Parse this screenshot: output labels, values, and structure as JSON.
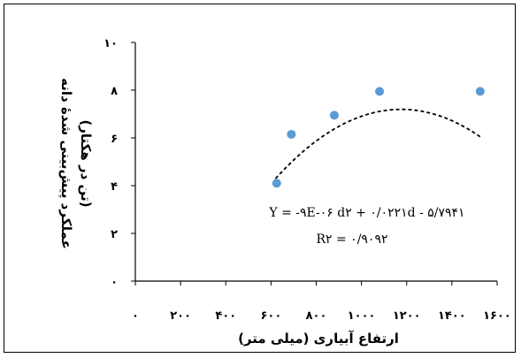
{
  "chart_data": {
    "type": "scatter",
    "title": "",
    "xlabel": "ارتفاع آبیاری (میلی متر)",
    "ylabel_line1": "عملکرد پیش‌بینی شدهٔ دانه",
    "ylabel_line2": "(تن در هکتار)",
    "xlim": [
      0,
      1600
    ],
    "ylim": [
      0,
      10
    ],
    "xticks": [
      0,
      200,
      400,
      600,
      800,
      1000,
      1200,
      1400,
      1600
    ],
    "xtick_labels": [
      "۰",
      "۲۰۰",
      "۴۰۰",
      "۶۰۰",
      "۸۰۰",
      "۱۰۰۰",
      "۱۲۰۰",
      "۱۴۰۰",
      "۱۶۰۰"
    ],
    "yticks": [
      0,
      2,
      4,
      6,
      8,
      10
    ],
    "ytick_labels": [
      "۰",
      "۲",
      "۴",
      "۶",
      "۸",
      "۱۰"
    ],
    "points": [
      {
        "x": 625,
        "y": 4.1
      },
      {
        "x": 690,
        "y": 6.15
      },
      {
        "x": 880,
        "y": 6.95
      },
      {
        "x": 1080,
        "y": 7.95
      },
      {
        "x": 1525,
        "y": 7.95
      }
    ],
    "trendline": {
      "a": -9.4e-06,
      "b": 0.0221,
      "c": -5.7941,
      "x_from": 620,
      "x_to": 1525,
      "style": "dashed"
    },
    "equation_line1": "Y = -۹E-۰۶ d۲ + ۰/۰۲۲۱d - ۵/۷۹۴۱",
    "equation_line2": "R۲ = ۰/۹۰۹۲",
    "grid": false,
    "colors": {
      "marker": "#5B9BD5",
      "trendline": "#000000",
      "axis": "#000000"
    }
  }
}
